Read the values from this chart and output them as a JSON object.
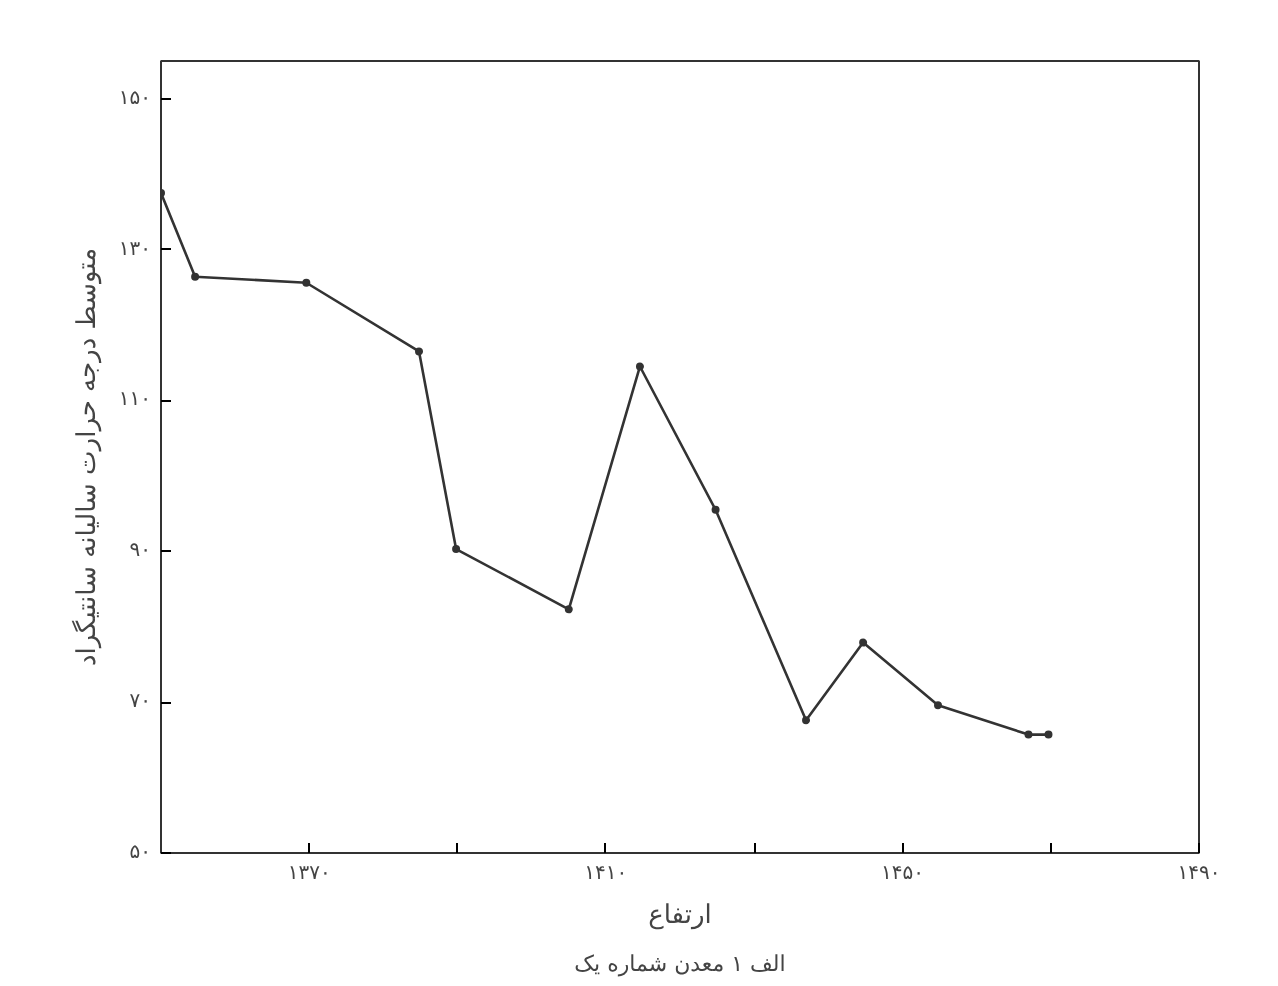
{
  "chart_data": {
    "type": "line",
    "xlabel": "ارتفاع",
    "ylabel": "متوسط درجه حرارت سالیانه سانتیگراد",
    "annotations": [
      "الف ۱ معدن شماره یک"
    ],
    "x": [
      1350,
      1354.6,
      1369.6,
      1384.8,
      1389.8,
      1405,
      1414.6,
      1424.8,
      1437,
      1444.7,
      1454.8,
      1467,
      1469.7
    ],
    "series": [
      {
        "color": "#333333",
        "values": [
          137.5,
          126.4,
          125.6,
          116.5,
          90.3,
          82.3,
          114.5,
          95.5,
          67.6,
          77.9,
          69.6,
          65.7,
          65.7
        ]
      }
    ],
    "xlim": [
      1350,
      1490
    ],
    "ylim": [
      50,
      155
    ],
    "xticks": [
      {
        "value": 1370,
        "label": "۱۳۷۰"
      },
      {
        "value": 1390,
        "label": null
      },
      {
        "value": 1410,
        "label": "۱۴۱۰"
      },
      {
        "value": 1430,
        "label": null
      },
      {
        "value": 1450,
        "label": "۱۴۵۰"
      },
      {
        "value": 1470,
        "label": null
      },
      {
        "value": 1490,
        "label": "۱۴۹۰"
      }
    ],
    "yticks": [
      {
        "value": 50,
        "label": "۵۰"
      },
      {
        "value": 70,
        "label": "۷۰"
      },
      {
        "value": 90,
        "label": "۹۰"
      },
      {
        "value": 110,
        "label": "۱۱۰"
      },
      {
        "value": 130,
        "label": "۱۳۰"
      },
      {
        "value": 150,
        "label": "۱۵۰"
      }
    ],
    "grid": false,
    "marker": "circle",
    "line_style": "solid"
  }
}
